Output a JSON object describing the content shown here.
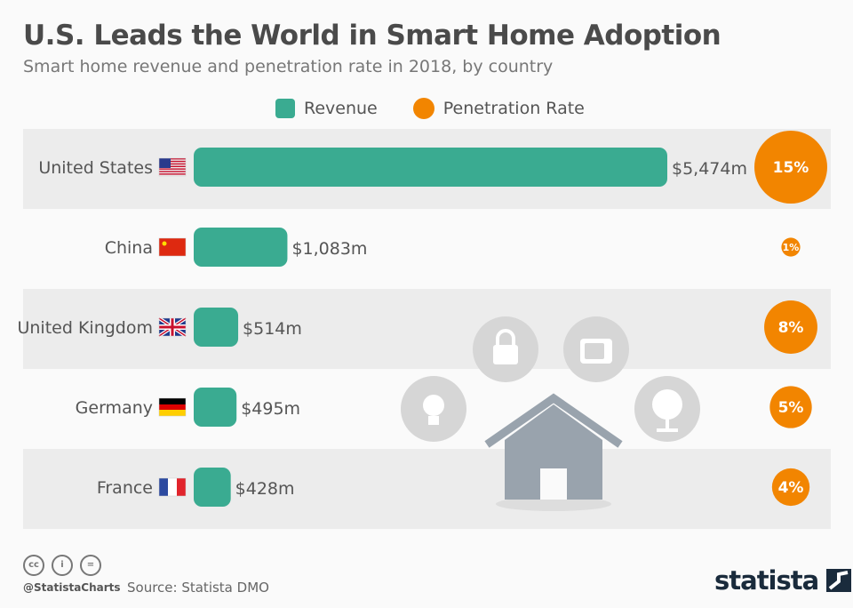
{
  "title": "U.S. Leads the World in Smart Home Adoption",
  "subtitle": "Smart home revenue and penetration rate in 2018, by country",
  "legend": {
    "revenue": "Revenue",
    "penetration": "Penetration Rate"
  },
  "colors": {
    "revenue": "#3aab91",
    "penetration": "#f28500",
    "band": "#ececec"
  },
  "chart_data": {
    "type": "bar",
    "categories": [
      "United States",
      "China",
      "United Kingdom",
      "Germany",
      "France"
    ],
    "series": [
      {
        "name": "Revenue",
        "values": [
          5474,
          1083,
          514,
          495,
          428
        ],
        "labels": [
          "$5,474m",
          "$1,083m",
          "$514m",
          "$495m",
          "$428m"
        ]
      },
      {
        "name": "Penetration Rate",
        "values": [
          15,
          1,
          8,
          5,
          4
        ],
        "labels": [
          "15%",
          "1%",
          "8%",
          "5%",
          "4%"
        ]
      }
    ]
  },
  "footer": {
    "handle": "@StatistaCharts",
    "source": "Source: Statista DMO",
    "logo": "statista",
    "cc_icons": [
      "cc",
      "by",
      "nd"
    ]
  }
}
